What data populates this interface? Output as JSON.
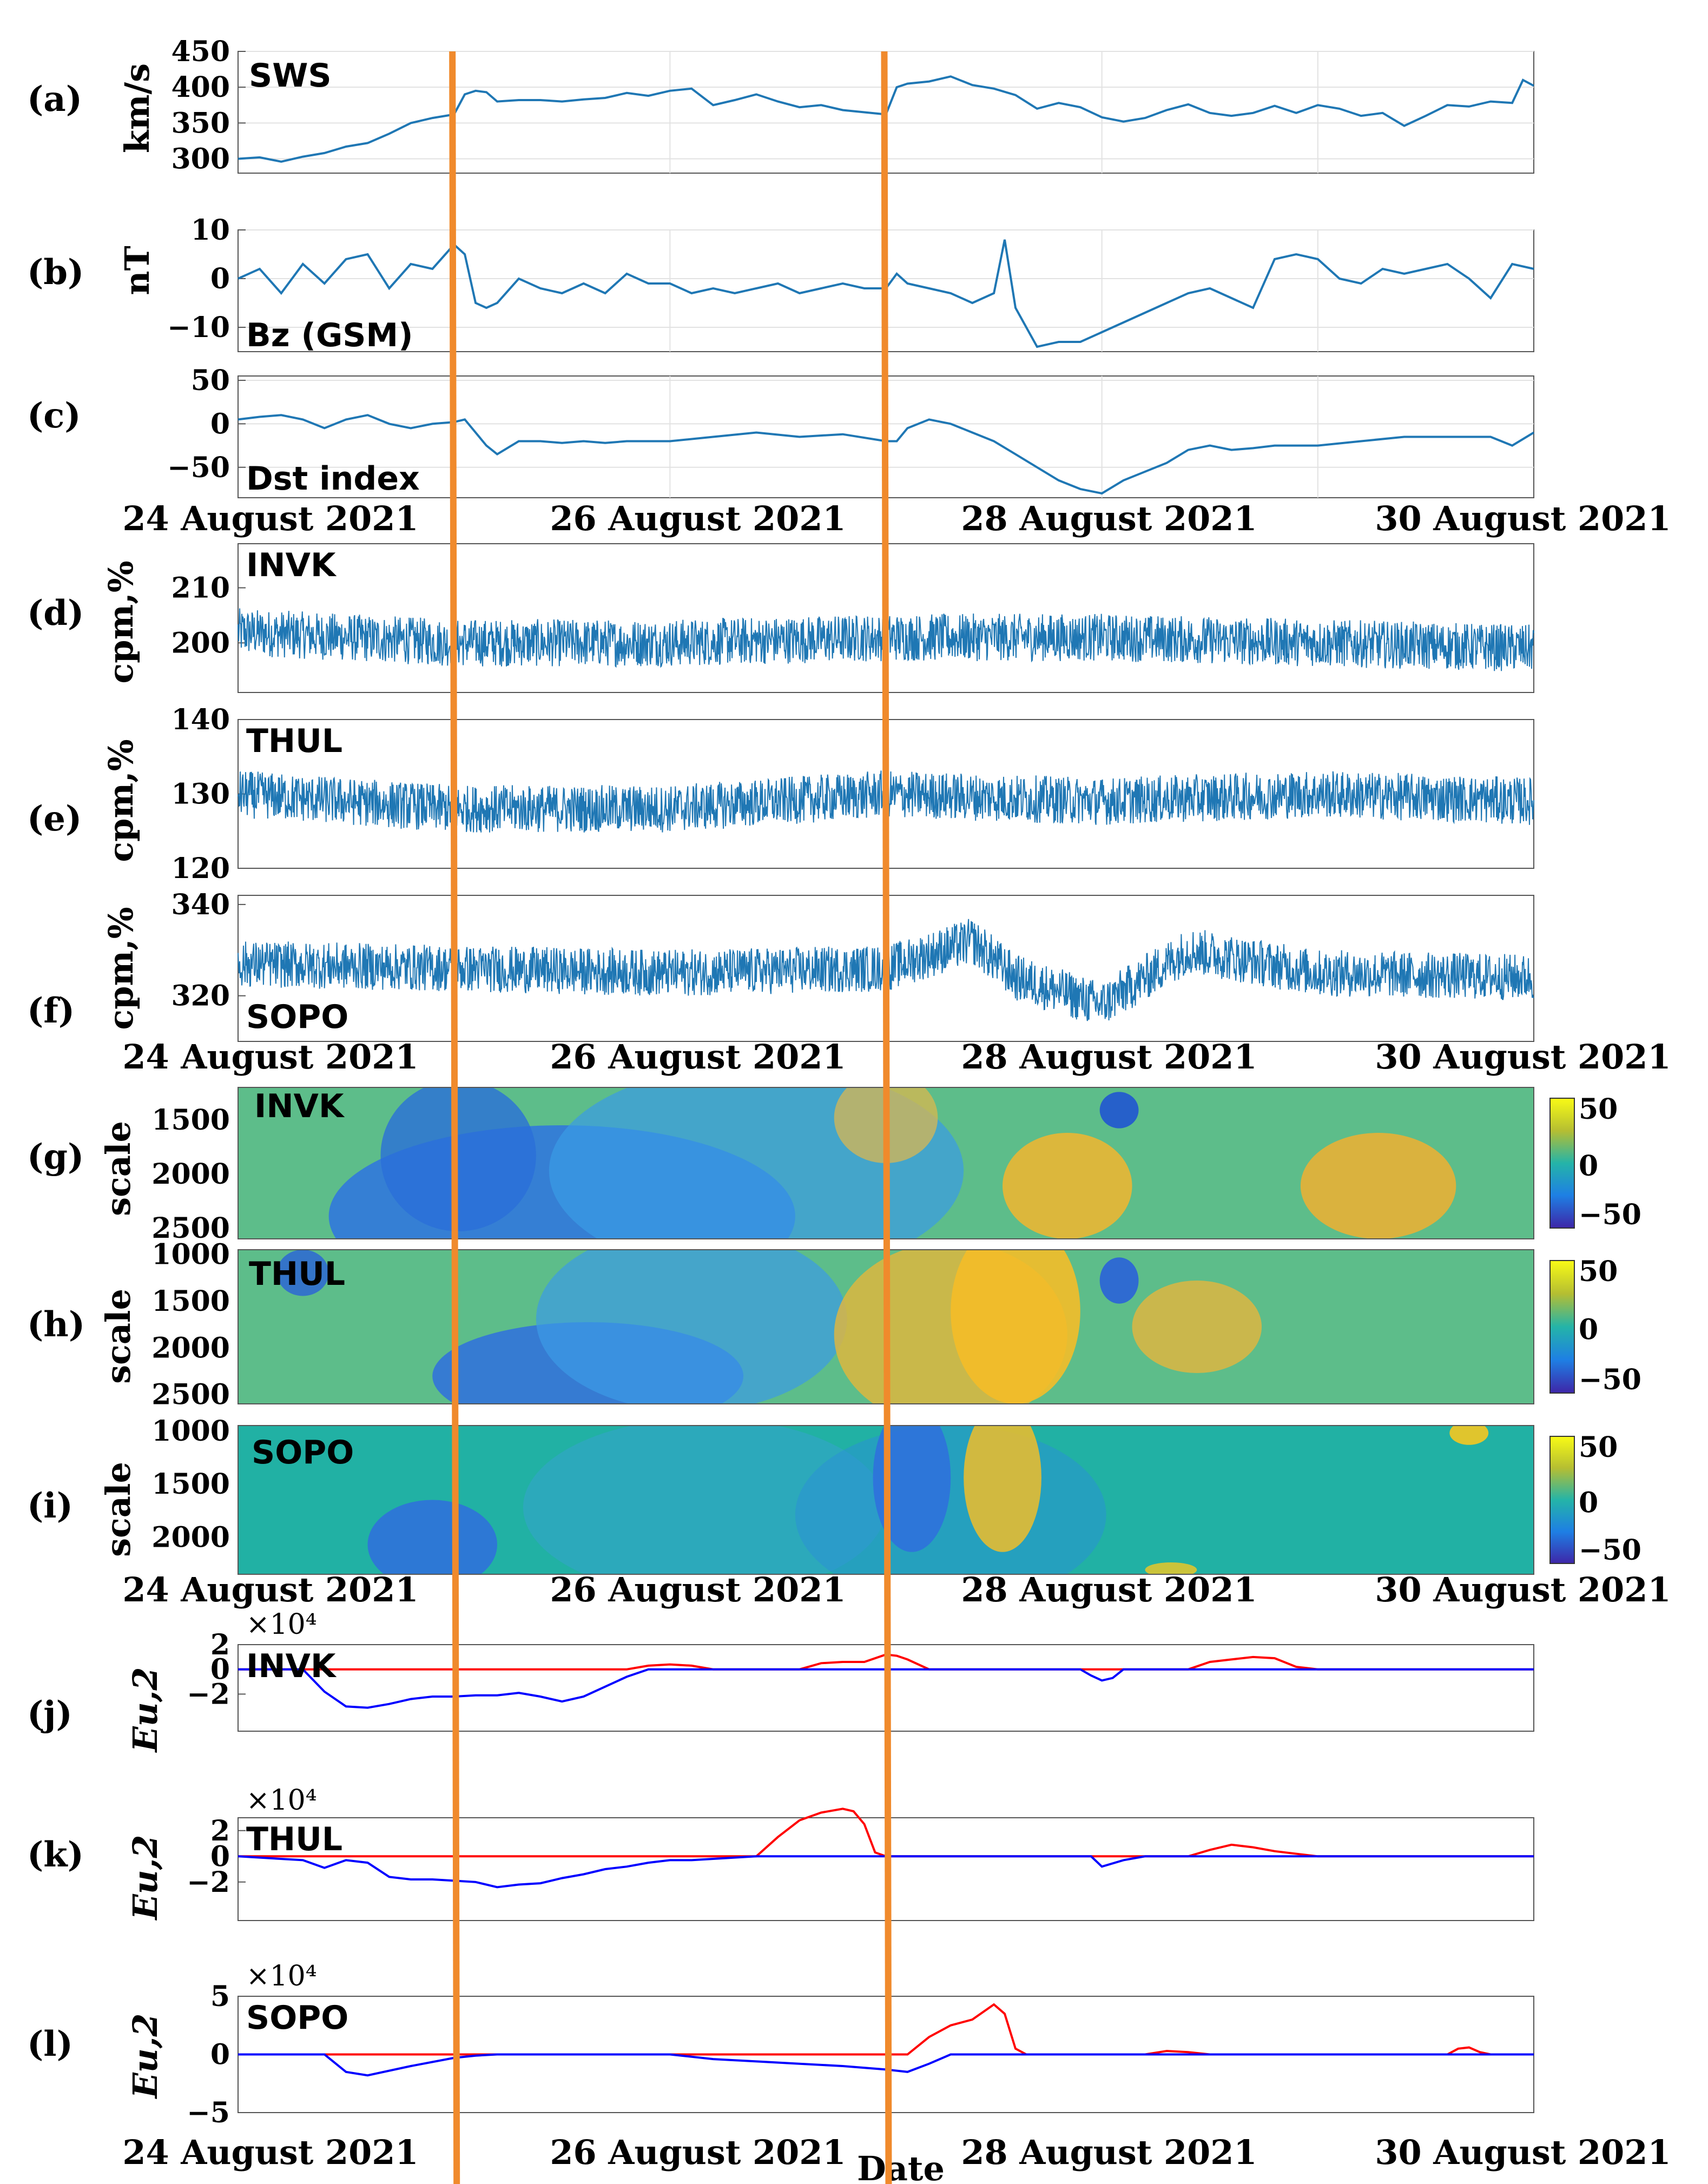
{
  "figure": {
    "date_ticks": [
      "24 August 2021",
      "26 August 2021",
      "28 August 2021",
      "30 August 2021"
    ],
    "xlabel": "Date",
    "event_line_color": "#f08a2c",
    "event_times_days": [
      1.0,
      3.0
    ],
    "series_color": "#1f77b4",
    "positive_color": "#ff0000",
    "negative_color": "#0000ff"
  },
  "chart_data": [
    {
      "panel": "(a)",
      "type": "line",
      "inner_label": "SWS",
      "ylabel": "km/s",
      "ylim": [
        280,
        450
      ],
      "yticks": [
        300,
        350,
        400,
        450
      ],
      "xlim_days": [
        0,
        6
      ],
      "grid": true,
      "series": [
        {
          "x": [
            0,
            0.1,
            0.2,
            0.3,
            0.4,
            0.5,
            0.6,
            0.7,
            0.8,
            0.9,
            1.0,
            1.05,
            1.1,
            1.15,
            1.2,
            1.3,
            1.4,
            1.5,
            1.6,
            1.7,
            1.8,
            1.9,
            2.0,
            2.1,
            2.2,
            2.3,
            2.4,
            2.5,
            2.6,
            2.7,
            2.8,
            2.9,
            3.0,
            3.05,
            3.1,
            3.2,
            3.3,
            3.4,
            3.5,
            3.6,
            3.7,
            3.8,
            3.9,
            4.0,
            4.1,
            4.2,
            4.3,
            4.4,
            4.5,
            4.6,
            4.7,
            4.8,
            4.9,
            5.0,
            5.1,
            5.2,
            5.3,
            5.4,
            5.5,
            5.6,
            5.7,
            5.8,
            5.9,
            5.95,
            6.0
          ],
          "y": [
            300,
            302,
            296,
            303,
            308,
            317,
            322,
            335,
            350,
            357,
            362,
            390,
            395,
            393,
            380,
            382,
            382,
            380,
            383,
            385,
            392,
            388,
            395,
            398,
            375,
            382,
            390,
            380,
            372,
            375,
            368,
            365,
            362,
            400,
            405,
            408,
            415,
            403,
            398,
            389,
            370,
            378,
            372,
            358,
            352,
            357,
            368,
            376,
            364,
            360,
            364,
            374,
            364,
            375,
            370,
            360,
            364,
            346,
            360,
            375,
            373,
            380,
            378,
            410,
            402
          ]
        }
      ]
    },
    {
      "panel": "(b)",
      "type": "line",
      "inner_label": "Bz (GSM)",
      "ylabel": "nT",
      "ylim": [
        -15,
        10
      ],
      "yticks": [
        -10,
        0,
        10
      ],
      "xlim_days": [
        0,
        6
      ],
      "grid": true,
      "series": [
        {
          "x": [
            0,
            0.1,
            0.2,
            0.3,
            0.4,
            0.5,
            0.6,
            0.7,
            0.8,
            0.9,
            1.0,
            1.05,
            1.1,
            1.15,
            1.2,
            1.3,
            1.4,
            1.5,
            1.6,
            1.7,
            1.8,
            1.9,
            2.0,
            2.1,
            2.2,
            2.3,
            2.4,
            2.5,
            2.6,
            2.7,
            2.8,
            2.9,
            3.0,
            3.05,
            3.1,
            3.2,
            3.3,
            3.4,
            3.5,
            3.55,
            3.6,
            3.7,
            3.8,
            3.9,
            4.0,
            4.1,
            4.2,
            4.3,
            4.4,
            4.5,
            4.6,
            4.7,
            4.8,
            4.9,
            5.0,
            5.1,
            5.2,
            5.3,
            5.4,
            5.5,
            5.6,
            5.7,
            5.8,
            5.9,
            6.0
          ],
          "y": [
            0,
            2,
            -3,
            3,
            -1,
            4,
            5,
            -2,
            3,
            2,
            7,
            5,
            -5,
            -6,
            -5,
            0,
            -2,
            -3,
            -1,
            -3,
            1,
            -1,
            -1,
            -3,
            -2,
            -3,
            -2,
            -1,
            -3,
            -2,
            -1,
            -2,
            -2,
            1,
            -1,
            -2,
            -3,
            -5,
            -3,
            8,
            -6,
            -14,
            -13,
            -13,
            -11,
            -9,
            -7,
            -5,
            -3,
            -2,
            -4,
            -6,
            4,
            5,
            4,
            0,
            -1,
            2,
            1,
            2,
            3,
            0,
            -4,
            3,
            2
          ]
        }
      ]
    },
    {
      "panel": "(c)",
      "type": "line",
      "inner_label": "Dst index",
      "ylabel": "",
      "ylim": [
        -85,
        55
      ],
      "yticks": [
        -50,
        0,
        50
      ],
      "xlim_days": [
        0,
        6
      ],
      "grid": true,
      "series": [
        {
          "x": [
            0,
            0.1,
            0.2,
            0.3,
            0.4,
            0.5,
            0.6,
            0.7,
            0.8,
            0.9,
            1.0,
            1.05,
            1.1,
            1.15,
            1.2,
            1.3,
            1.4,
            1.5,
            1.6,
            1.7,
            1.8,
            1.9,
            2.0,
            2.2,
            2.4,
            2.6,
            2.8,
            3.0,
            3.05,
            3.1,
            3.2,
            3.3,
            3.4,
            3.5,
            3.6,
            3.7,
            3.8,
            3.9,
            4.0,
            4.1,
            4.2,
            4.3,
            4.4,
            4.5,
            4.6,
            4.7,
            4.8,
            4.9,
            5.0,
            5.2,
            5.4,
            5.6,
            5.8,
            5.9,
            6.0
          ],
          "y": [
            5,
            8,
            10,
            5,
            -5,
            5,
            10,
            0,
            -5,
            0,
            2,
            5,
            -10,
            -25,
            -35,
            -20,
            -20,
            -22,
            -20,
            -22,
            -20,
            -20,
            -20,
            -15,
            -10,
            -15,
            -12,
            -20,
            -20,
            -5,
            5,
            0,
            -10,
            -20,
            -35,
            -50,
            -65,
            -75,
            -80,
            -65,
            -55,
            -45,
            -30,
            -25,
            -30,
            -28,
            -25,
            -25,
            -25,
            -20,
            -15,
            -15,
            -15,
            -25,
            -10
          ]
        }
      ]
    },
    {
      "panel": "(d)",
      "type": "line",
      "inner_label": "INVK",
      "ylabel": "cpm,%",
      "ylim": [
        191,
        218
      ],
      "yticks": [
        200,
        210
      ],
      "xlim_days": [
        0,
        6
      ],
      "noise": true,
      "series": [
        {
          "x": [
            0,
            1,
            2,
            3,
            4,
            5,
            6
          ],
          "y": [
            202,
            200,
            200,
            201,
            201,
            200,
            199
          ]
        }
      ]
    },
    {
      "panel": "(e)",
      "type": "line",
      "inner_label": "THUL",
      "ylabel": "cpm,%",
      "ylim": [
        120,
        140
      ],
      "yticks": [
        120,
        130,
        140
      ],
      "xlim_days": [
        0,
        6
      ],
      "noise": true,
      "series": [
        {
          "x": [
            0,
            1,
            2,
            3,
            4,
            5,
            6
          ],
          "y": [
            130,
            128,
            128,
            130,
            129,
            130,
            129
          ]
        }
      ]
    },
    {
      "panel": "(f)",
      "type": "line",
      "inner_label": "SOPO",
      "ylabel": "cpm,%",
      "ylim": [
        310,
        342
      ],
      "yticks": [
        320,
        340
      ],
      "xlim_days": [
        0,
        6
      ],
      "noise": true,
      "series": [
        {
          "x": [
            0,
            1,
            2,
            3,
            3.4,
            3.6,
            4.0,
            4.4,
            5,
            6
          ],
          "y": [
            327,
            326,
            325,
            326,
            332,
            324,
            318,
            330,
            325,
            324
          ]
        }
      ]
    },
    {
      "panel": "(g)",
      "type": "heatmap",
      "inner_label": "INVK",
      "ylabel": "scale",
      "yticks": [
        1500,
        2000,
        2500
      ],
      "clim": [
        -60,
        60
      ],
      "cbar_ticks": [
        "50",
        "0",
        "−50"
      ],
      "xlim_days": [
        0,
        6
      ]
    },
    {
      "panel": "(h)",
      "type": "heatmap",
      "inner_label": "THUL",
      "ylabel": "scale",
      "yticks": [
        1000,
        1500,
        2000,
        2500
      ],
      "clim": [
        -60,
        60
      ],
      "cbar_ticks": [
        "50",
        "0",
        "−50"
      ],
      "xlim_days": [
        0,
        6
      ]
    },
    {
      "panel": "(i)",
      "type": "heatmap",
      "inner_label": "SOPO",
      "ylabel": "scale",
      "yticks": [
        1000,
        1500,
        2000
      ],
      "clim": [
        -60,
        60
      ],
      "cbar_ticks": [
        "50",
        "0",
        "−50"
      ],
      "xlim_days": [
        0,
        6
      ]
    },
    {
      "panel": "(j)",
      "type": "line",
      "inner_label": "INVK",
      "ylabel": "Eu,2",
      "scale_note": "×10⁴",
      "ylim": [
        -5,
        2
      ],
      "yticks": [
        -2,
        0,
        2
      ],
      "xlim_days": [
        0,
        6
      ],
      "series": [
        {
          "sign": "positive",
          "x": [
            0,
            1.8,
            1.9,
            2.0,
            2.1,
            2.2,
            2.3,
            2.4,
            2.5,
            2.6,
            2.7,
            2.8,
            2.9,
            3.0,
            3.05,
            3.1,
            3.2,
            3.3,
            3.4,
            3.5,
            3.6,
            3.7,
            3.8,
            3.9,
            4.0,
            4.2,
            4.4,
            4.5,
            4.6,
            4.7,
            4.8,
            4.9,
            5.0,
            5.1,
            6.0
          ],
          "y": [
            0,
            0,
            0.3,
            0.4,
            0.3,
            0,
            0,
            0,
            0,
            0,
            0.5,
            0.6,
            0.6,
            1.2,
            1.1,
            0.8,
            0,
            0,
            0,
            0,
            0,
            0,
            0,
            0,
            0,
            0,
            0,
            0.6,
            0.8,
            1.0,
            0.9,
            0.2,
            0,
            0,
            0
          ]
        },
        {
          "sign": "negative",
          "x": [
            0,
            0.3,
            0.4,
            0.5,
            0.6,
            0.7,
            0.8,
            0.9,
            1.0,
            1.1,
            1.2,
            1.3,
            1.4,
            1.5,
            1.6,
            1.7,
            1.8,
            1.9,
            2.0,
            3.0,
            3.9,
            3.95,
            4.0,
            4.05,
            4.1,
            4.2,
            6.0
          ],
          "y": [
            0,
            0,
            -1.8,
            -3.0,
            -3.1,
            -2.8,
            -2.4,
            -2.2,
            -2.2,
            -2.1,
            -2.1,
            -1.9,
            -2.2,
            -2.6,
            -2.2,
            -1.4,
            -0.6,
            0,
            0,
            0,
            0,
            -0.5,
            -0.9,
            -0.7,
            0,
            0,
            0
          ]
        }
      ]
    },
    {
      "panel": "(k)",
      "type": "line",
      "inner_label": "THUL",
      "ylabel": "Eu,2",
      "scale_note": "×10⁴",
      "ylim": [
        -5,
        3
      ],
      "yticks": [
        -2,
        0,
        2
      ],
      "xlim_days": [
        0,
        6
      ],
      "series": [
        {
          "sign": "positive",
          "x": [
            0,
            2.4,
            2.5,
            2.6,
            2.7,
            2.8,
            2.85,
            2.9,
            2.95,
            3.0,
            4.2,
            4.4,
            4.5,
            4.6,
            4.7,
            4.8,
            5.0,
            6.0
          ],
          "y": [
            0,
            0,
            1.5,
            2.8,
            3.4,
            3.7,
            3.5,
            2.5,
            0.3,
            0,
            0,
            0,
            0.5,
            0.9,
            0.7,
            0.4,
            0,
            0
          ]
        },
        {
          "sign": "negative",
          "x": [
            0,
            0.3,
            0.4,
            0.5,
            0.6,
            0.7,
            0.8,
            0.9,
            1.0,
            1.1,
            1.2,
            1.3,
            1.4,
            1.5,
            1.6,
            1.7,
            1.8,
            1.9,
            2.0,
            2.1,
            2.2,
            2.3,
            2.4,
            3.0,
            3.95,
            4.0,
            4.1,
            4.2,
            6.0
          ],
          "y": [
            0,
            -0.3,
            -0.9,
            -0.3,
            -0.5,
            -1.6,
            -1.8,
            -1.8,
            -1.9,
            -2.0,
            -2.4,
            -2.2,
            -2.1,
            -1.7,
            -1.4,
            -1.0,
            -0.8,
            -0.5,
            -0.3,
            -0.3,
            -0.2,
            -0.1,
            0,
            0,
            0,
            -0.8,
            -0.3,
            0,
            0
          ]
        }
      ]
    },
    {
      "panel": "(l)",
      "type": "line",
      "inner_label": "SOPO",
      "ylabel": "Eu,2",
      "scale_note": "×10⁴",
      "ylim": [
        -5,
        5
      ],
      "yticks": [
        -5,
        0,
        5
      ],
      "xlim_days": [
        0,
        6
      ],
      "series": [
        {
          "sign": "positive",
          "x": [
            0,
            3.1,
            3.2,
            3.3,
            3.4,
            3.5,
            3.55,
            3.6,
            3.65,
            3.7,
            4.2,
            4.3,
            4.4,
            4.5,
            5.6,
            5.65,
            5.7,
            5.75,
            5.8,
            6.0
          ],
          "y": [
            0,
            0,
            1.5,
            2.5,
            3.0,
            4.3,
            3.5,
            0.5,
            0,
            0,
            0,
            0.3,
            0.2,
            0,
            0,
            0.5,
            0.6,
            0.2,
            0,
            0
          ]
        },
        {
          "sign": "negative",
          "x": [
            0,
            0.4,
            0.5,
            0.6,
            0.8,
            1.0,
            1.1,
            1.2,
            2.0,
            2.2,
            2.4,
            2.6,
            2.8,
            3.0,
            3.1,
            3.2,
            3.3,
            6.0
          ],
          "y": [
            0,
            0,
            -1.5,
            -1.8,
            -1.0,
            -0.3,
            -0.1,
            0,
            0,
            -0.4,
            -0.6,
            -0.8,
            -1.0,
            -1.3,
            -1.5,
            -0.8,
            0,
            0
          ]
        }
      ]
    }
  ]
}
